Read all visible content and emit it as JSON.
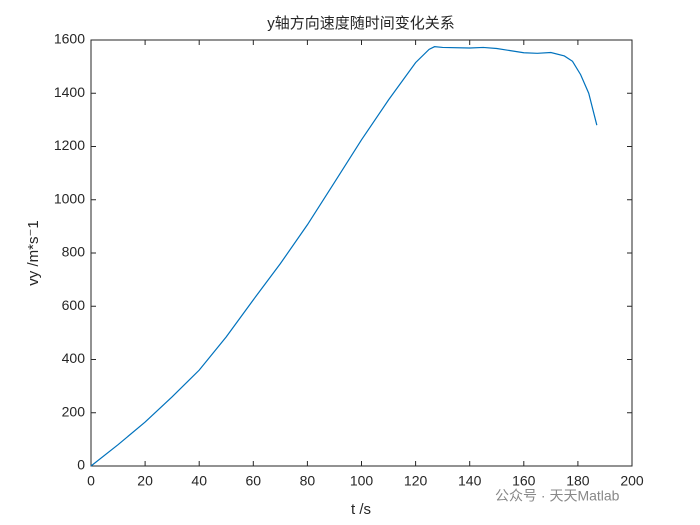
{
  "chart_data": {
    "type": "line",
    "title": "y轴方向速度随时间变化关系",
    "xlabel": "t  /s",
    "ylabel": "vy  /m*s⁻1",
    "annotation": "公众号 · 天天Matlab",
    "x": [
      0,
      10,
      20,
      30,
      40,
      50,
      60,
      70,
      80,
      90,
      100,
      110,
      120,
      125,
      127,
      130,
      140,
      145,
      150,
      155,
      160,
      165,
      170,
      175,
      178,
      181,
      184,
      187
    ],
    "series": [
      {
        "name": "vy",
        "color": "#0072BD",
        "values": [
          0,
          80,
          165,
          260,
          360,
          485,
          624,
          760,
          906,
          1065,
          1225,
          1375,
          1515,
          1565,
          1575,
          1572,
          1570,
          1572,
          1568,
          1560,
          1552,
          1550,
          1553,
          1540,
          1520,
          1470,
          1400,
          1280
        ]
      }
    ],
    "xlim": [
      0,
      200
    ],
    "xticks": [
      0,
      20,
      40,
      60,
      80,
      100,
      120,
      140,
      160,
      180,
      200
    ],
    "ylim": [
      0,
      1600
    ],
    "yticks": [
      0,
      200,
      400,
      600,
      800,
      1000,
      1200,
      1400,
      1600
    ],
    "grid": false
  }
}
